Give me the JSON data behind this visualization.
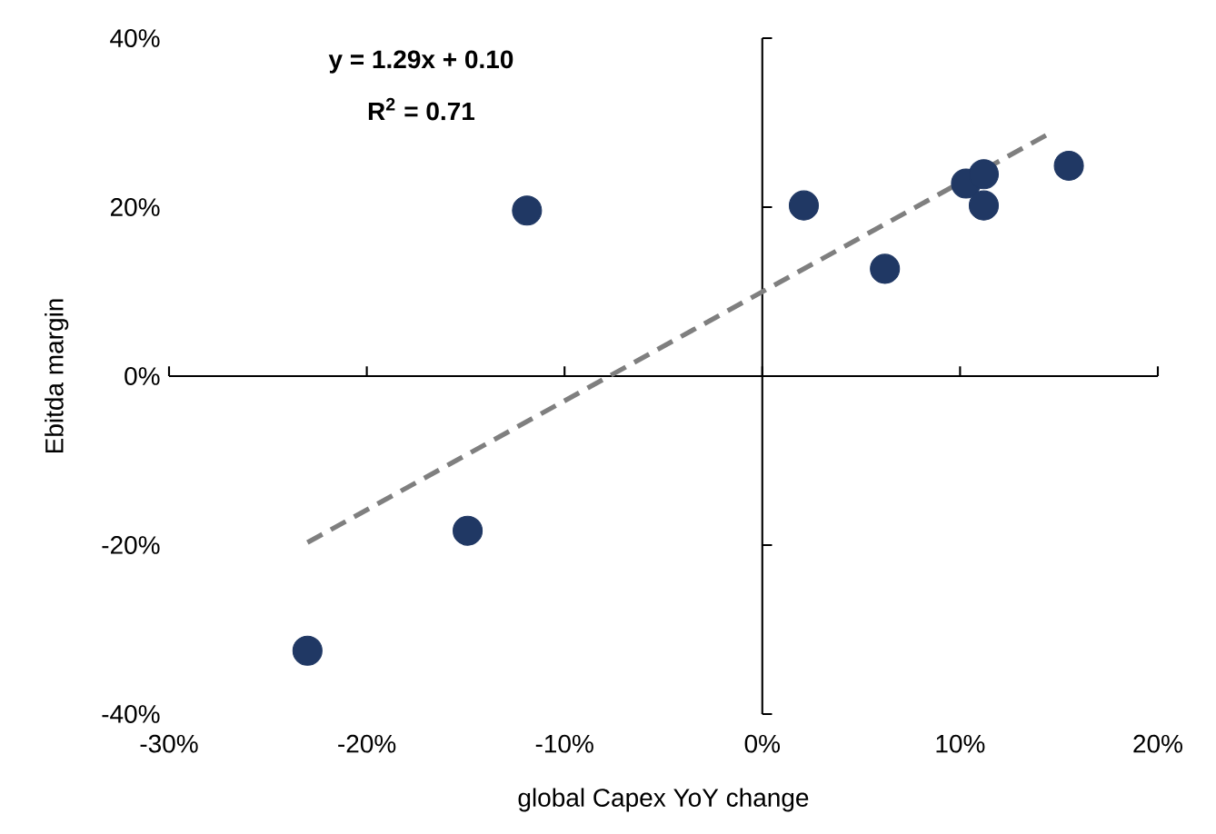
{
  "chart_data": {
    "type": "scatter",
    "xlabel": "global Capex YoY change",
    "ylabel": "Ebitda margin",
    "annotations": [
      "**y = 1.29x + 0.10**",
      "**R$^{2}$ = 0.71**"
    ],
    "series": [
      {
        "color": "#203864",
        "marker": "circle",
        "x": [
          -23,
          -14.9,
          -11.9,
          2.1,
          6.2,
          10.3,
          11.2,
          11.2,
          15.5
        ],
        "values": [
          -32.5,
          -18.3,
          19.6,
          20.2,
          12.7,
          22.8,
          23.9,
          20.2,
          24.9
        ]
      },
      {
        "type": "line",
        "color": "#7f7f7f",
        "marker": "none",
        "line_style": "dashed",
        "x": [
          -23,
          14.5
        ],
        "values": [
          -19.7,
          28.7
        ]
      }
    ],
    "xlim": [
      -30,
      20
    ],
    "ylim": [
      -40,
      40
    ],
    "xticks": [
      {
        "value": -30,
        "label": "-30%"
      },
      {
        "value": -20,
        "label": "-20%"
      },
      {
        "value": -10,
        "label": "-10%"
      },
      {
        "value": 0,
        "label": "0%"
      },
      {
        "value": 10,
        "label": "10%"
      },
      {
        "value": 20,
        "label": "20%"
      }
    ],
    "yticks": [
      {
        "value": -40,
        "label": "-40%"
      },
      {
        "value": -20,
        "label": "-20%"
      },
      {
        "value": 0,
        "label": "0%"
      },
      {
        "value": 20,
        "label": "20%"
      },
      {
        "value": 40,
        "label": "40%"
      }
    ]
  }
}
